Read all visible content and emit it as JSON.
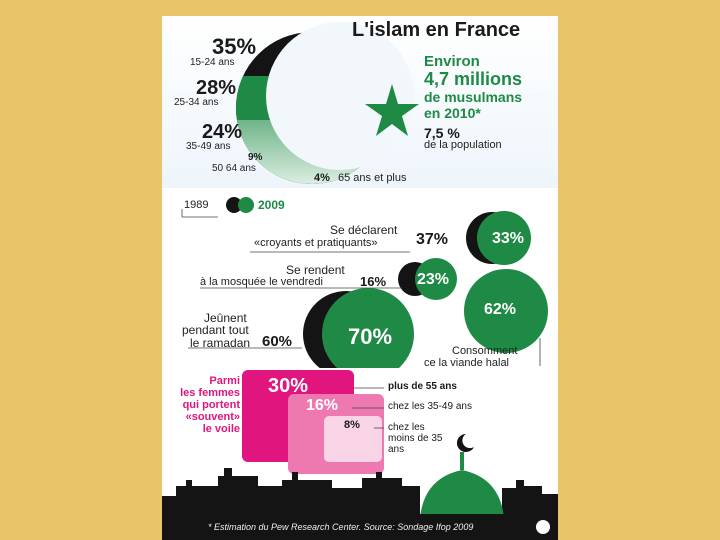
{
  "title": "L'islam en France",
  "population": {
    "l1": "Environ",
    "l2": "4,7 millions",
    "l3": "de musulmans",
    "l4": "en 2010*",
    "pct": "7,5 %",
    "sub": "de la population"
  },
  "age_groups": [
    {
      "pct": "35%",
      "label": "15-24 ans"
    },
    {
      "pct": "28%",
      "label": "25-34 ans"
    },
    {
      "pct": "24%",
      "label": "35-49 ans"
    },
    {
      "pct": "9%",
      "label": "50 64 ans"
    },
    {
      "pct": "4%",
      "label": "65 ans et plus"
    }
  ],
  "legend": {
    "year1": "1989",
    "year2": "2009"
  },
  "practices": [
    {
      "label_a": "Se déclarent",
      "label_b": "«croyants et pratiquants»",
      "v1989": "37%",
      "v2009": "33%"
    },
    {
      "label_a": "Se rendent",
      "label_b": "à la mosquée le vendredi",
      "v1989": "16%",
      "v2009": "23%"
    },
    {
      "label_a": "Jeûnent",
      "label_b": "pendant tout",
      "label_c": "le ramadan",
      "v1989": "60%",
      "v2009": "70%"
    }
  ],
  "halal": {
    "value": "62%",
    "label_a": "Consomment",
    "label_b": "ce la viande halal"
  },
  "veil": {
    "title_l1": "Parmi",
    "title_l2": "les femmes",
    "title_l3": "qui portent",
    "title_l4": "«souvent»",
    "title_l5": "le voile",
    "items": [
      {
        "value": "30%",
        "label": "plus de 55 ans"
      },
      {
        "value": "16%",
        "label": "chez les 35-49 ans"
      },
      {
        "value": "8%",
        "label": "chez les moins de 35 ans"
      }
    ]
  },
  "footer": "* Estimation du Pew Research Center. Source: Sondage Ifop 2009",
  "colors": {
    "green": "#1f8a45",
    "black": "#141414",
    "pink": "#e0157d",
    "background": "#e9c567"
  },
  "chart_data": [
    {
      "type": "pie",
      "title": "L'islam en France",
      "categories": [
        "15-24 ans",
        "25-34 ans",
        "35-49 ans",
        "50 64 ans",
        "65 ans et plus"
      ],
      "values": [
        35,
        28,
        24,
        9,
        4
      ]
    },
    {
      "type": "bar",
      "categories": [
        "Se déclarent «croyants et pratiquants»",
        "Se rendent à la mosquée le vendredi",
        "Jeûnent pendant tout le ramadan"
      ],
      "series": [
        {
          "name": "1989",
          "values": [
            37,
            16,
            60
          ]
        },
        {
          "name": "2009",
          "values": [
            33,
            23,
            70
          ]
        }
      ]
    },
    {
      "type": "bar",
      "categories": [
        "Consomment ce la viande halal"
      ],
      "values": [
        62
      ]
    },
    {
      "type": "bar",
      "categories": [
        "plus de 55 ans",
        "chez les 35-49 ans",
        "chez les moins de 35 ans"
      ],
      "values": [
        30,
        16,
        8
      ]
    }
  ]
}
